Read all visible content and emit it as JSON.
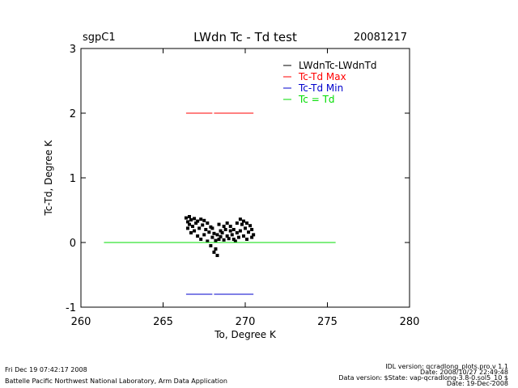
{
  "header": {
    "site": "sgpC1",
    "title": "LWdn Tc - Td test",
    "date": "20081217"
  },
  "chart_data": {
    "type": "scatter",
    "title": "LWdn Tc - Td test",
    "xlabel": "To, Degree K",
    "ylabel": "Tc-Td, Degree K",
    "xlim": [
      260,
      280
    ],
    "ylim": [
      -1,
      3
    ],
    "xticks": [
      "260",
      "265",
      "270",
      "275",
      "280"
    ],
    "yticks": [
      "-1",
      "0",
      "1",
      "2",
      "3"
    ],
    "grid": false,
    "legend_position": "top-right",
    "legend": [
      {
        "label": "LWdnTc-LWdnTd",
        "color": "#000000"
      },
      {
        "label": "Tc-Td Max",
        "color": "#ff0000"
      },
      {
        "label": "Tc-Td Min",
        "color": "#0000cc"
      },
      {
        "label": "Tc = Td",
        "color": "#00dd00"
      }
    ],
    "series": [
      {
        "name": "LWdnTc-LWdnTd",
        "kind": "points",
        "color": "#000000",
        "points": [
          [
            266.4,
            0.38
          ],
          [
            266.5,
            0.32
          ],
          [
            266.5,
            0.22
          ],
          [
            266.6,
            0.4
          ],
          [
            266.6,
            0.28
          ],
          [
            266.7,
            0.15
          ],
          [
            266.7,
            0.35
          ],
          [
            266.8,
            0.25
          ],
          [
            266.9,
            0.37
          ],
          [
            266.9,
            0.18
          ],
          [
            267.0,
            0.3
          ],
          [
            267.1,
            0.1
          ],
          [
            267.1,
            0.33
          ],
          [
            267.2,
            0.22
          ],
          [
            267.3,
            0.36
          ],
          [
            267.3,
            0.05
          ],
          [
            267.4,
            0.27
          ],
          [
            267.5,
            0.12
          ],
          [
            267.5,
            0.34
          ],
          [
            267.6,
            0.2
          ],
          [
            267.7,
            0.02
          ],
          [
            267.7,
            0.3
          ],
          [
            267.8,
            0.16
          ],
          [
            267.9,
            0.24
          ],
          [
            267.9,
            -0.05
          ],
          [
            268.0,
            0.08
          ],
          [
            268.0,
            0.22
          ],
          [
            268.1,
            -0.15
          ],
          [
            268.1,
            0.14
          ],
          [
            268.2,
            0.03
          ],
          [
            268.2,
            -0.1
          ],
          [
            268.3,
            0.12
          ],
          [
            268.3,
            -0.2
          ],
          [
            268.4,
            0.05
          ],
          [
            268.4,
            0.28
          ],
          [
            268.5,
            0.18
          ],
          [
            268.5,
            0.09
          ],
          [
            268.6,
            0.15
          ],
          [
            268.7,
            0.25
          ],
          [
            268.7,
            0.04
          ],
          [
            268.8,
            0.2
          ],
          [
            268.9,
            0.1
          ],
          [
            268.9,
            0.3
          ],
          [
            269.0,
            0.06
          ],
          [
            269.1,
            0.18
          ],
          [
            269.1,
            0.25
          ],
          [
            269.2,
            0.12
          ],
          [
            269.3,
            0.05
          ],
          [
            269.3,
            0.2
          ],
          [
            269.4,
            0.02
          ],
          [
            269.5,
            0.15
          ],
          [
            269.5,
            0.3
          ],
          [
            269.6,
            0.08
          ],
          [
            269.7,
            0.36
          ],
          [
            269.7,
            0.18
          ],
          [
            269.8,
            0.28
          ],
          [
            269.9,
            0.1
          ],
          [
            269.9,
            0.33
          ],
          [
            270.0,
            0.22
          ],
          [
            270.1,
            0.05
          ],
          [
            270.1,
            0.3
          ],
          [
            270.2,
            0.16
          ],
          [
            270.3,
            0.26
          ],
          [
            270.4,
            0.08
          ],
          [
            270.4,
            0.2
          ],
          [
            270.5,
            0.12
          ]
        ]
      },
      {
        "name": "Tc-Td Max",
        "kind": "segments",
        "color": "#ff0000",
        "segments": [
          [
            266.4,
            268.0,
            2.0
          ],
          [
            268.1,
            270.5,
            2.0
          ]
        ]
      },
      {
        "name": "Tc-Td Min",
        "kind": "segments",
        "color": "#0000cc",
        "segments": [
          [
            266.4,
            268.0,
            -0.8
          ],
          [
            268.1,
            270.5,
            -0.8
          ]
        ]
      },
      {
        "name": "Tc = Td",
        "kind": "segments",
        "color": "#00dd00",
        "segments": [
          [
            261.4,
            275.5,
            0.0
          ]
        ]
      }
    ]
  },
  "footer": {
    "timestamp": "Fri Dec 19 07:42:17 2008",
    "org": "Battelle Pacific Northwest National Laboratory, Arm Data Application",
    "idl_version": "IDL version: qcradlong_plots.pro,v 1.1",
    "file_date": "Date: 2008/10/27 22:49:48",
    "data_version": "Data version: $State: vap-qcradlong-3.8-0.sol5_10 $",
    "data_date": "Date: 19-Dec-2008"
  }
}
